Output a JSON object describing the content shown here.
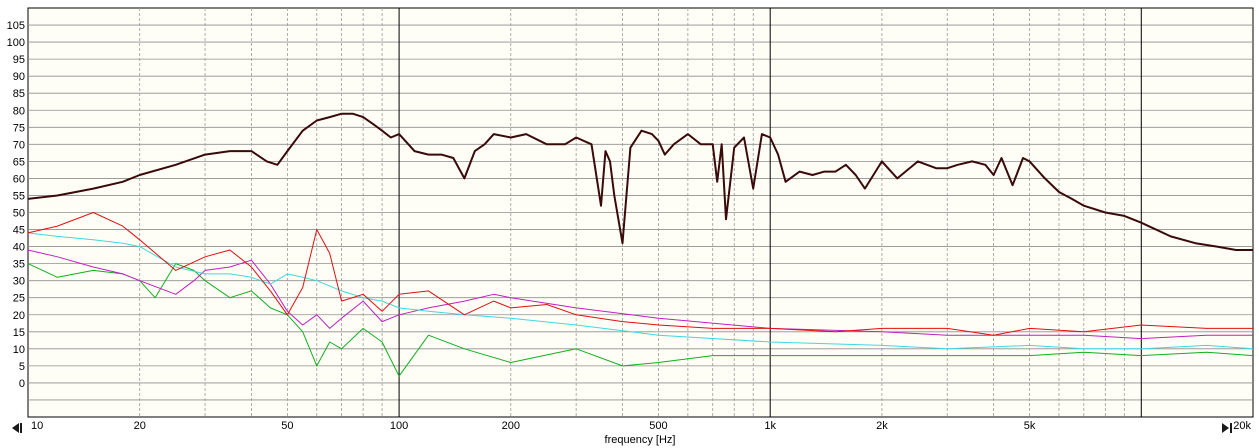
{
  "chart_data": {
    "type": "line",
    "title": "",
    "xlabel": "frequency [Hz]",
    "ylabel": "",
    "x_scale": "log",
    "xlim": [
      10,
      20000
    ],
    "ylim": [
      -10,
      110
    ],
    "y_ticks": [
      0,
      5,
      10,
      15,
      20,
      25,
      30,
      35,
      40,
      45,
      50,
      55,
      60,
      65,
      70,
      75,
      80,
      85,
      90,
      95,
      100,
      105
    ],
    "y_tick_labels": [
      "0",
      "5",
      "10",
      "15",
      "20",
      "25",
      "30",
      "35",
      "40",
      "45",
      "50",
      "55",
      "60",
      "65",
      "70",
      "75",
      "80",
      "85",
      "90",
      "95",
      "100",
      "105"
    ],
    "x_ticks": [
      10,
      20,
      50,
      100,
      200,
      500,
      1000,
      2000,
      5000,
      20000
    ],
    "x_tick_labels": [
      "10",
      "20",
      "50",
      "100",
      "200",
      "500",
      "1k",
      "2k",
      "5k",
      "20k"
    ],
    "grid": true,
    "legend": "none",
    "colors": {
      "main": "#3a0a0a",
      "red": "#e01010",
      "cyan": "#40d8e0",
      "magenta": "#c020c0",
      "green": "#10b020",
      "grid_minor": "#9a9a9a",
      "grid_major": "#000000"
    },
    "series": [
      {
        "color": "#3a0a0a",
        "x": [
          10,
          12,
          15,
          18,
          20,
          25,
          30,
          35,
          40,
          44,
          47,
          50,
          55,
          60,
          65,
          70,
          75,
          80,
          85,
          90,
          95,
          100,
          110,
          120,
          130,
          140,
          150,
          160,
          170,
          180,
          200,
          220,
          250,
          280,
          300,
          330,
          350,
          360,
          370,
          380,
          400,
          420,
          450,
          480,
          500,
          520,
          550,
          600,
          650,
          700,
          720,
          740,
          760,
          800,
          850,
          900,
          950,
          1000,
          1050,
          1100,
          1200,
          1300,
          1400,
          1500,
          1600,
          1700,
          1800,
          2000,
          2200,
          2500,
          2800,
          3000,
          3200,
          3500,
          3800,
          4000,
          4200,
          4500,
          4800,
          5000,
          5500,
          6000,
          6500,
          7000,
          8000,
          9000,
          10000,
          12000,
          14000,
          16000,
          18000,
          20000
        ],
        "y": [
          54,
          55,
          57,
          59,
          61,
          64,
          67,
          68,
          68,
          65,
          64,
          68,
          74,
          77,
          78,
          79,
          79,
          78,
          76,
          74,
          72,
          73,
          68,
          67,
          67,
          66,
          60,
          68,
          70,
          73,
          72,
          73,
          70,
          70,
          72,
          70,
          52,
          68,
          65,
          55,
          41,
          69,
          74,
          73,
          71,
          67,
          70,
          73,
          70,
          70,
          59,
          70,
          48,
          69,
          72,
          57,
          73,
          72,
          67,
          59,
          62,
          61,
          62,
          62,
          64,
          61,
          57,
          65,
          60,
          65,
          63,
          63,
          64,
          65,
          64,
          61,
          66,
          58,
          66,
          65,
          60,
          56,
          54,
          52,
          50,
          49,
          47,
          43,
          41,
          40,
          39,
          39
        ]
      },
      {
        "color": "#e01010",
        "x": [
          10,
          12,
          15,
          18,
          20,
          25,
          30,
          35,
          40,
          45,
          50,
          55,
          60,
          65,
          70,
          80,
          90,
          100,
          120,
          150,
          180,
          200,
          250,
          300,
          400,
          500,
          700,
          1000,
          1500,
          2000,
          3000,
          4000,
          5000,
          7000,
          10000,
          15000,
          20000
        ],
        "y": [
          44,
          46,
          50,
          46,
          42,
          33,
          37,
          39,
          34,
          27,
          20,
          28,
          45,
          38,
          24,
          26,
          21,
          26,
          27,
          20,
          24,
          22,
          23,
          20,
          18,
          17,
          16,
          16,
          15,
          16,
          16,
          14,
          16,
          15,
          17,
          16,
          16
        ]
      },
      {
        "color": "#40d8e0",
        "x": [
          10,
          12,
          15,
          18,
          20,
          25,
          30,
          35,
          40,
          45,
          50,
          55,
          60,
          70,
          80,
          90,
          100,
          120,
          150,
          200,
          300,
          500,
          1000,
          2000,
          3000,
          5000,
          7000,
          10000,
          15000,
          20000
        ],
        "y": [
          44,
          43,
          42,
          41,
          40,
          34,
          32,
          32,
          31,
          29,
          32,
          31,
          30,
          27,
          25,
          24,
          22,
          21,
          20,
          19,
          17,
          14,
          12,
          11,
          10,
          11,
          10,
          10,
          11,
          10
        ]
      },
      {
        "color": "#c020c0",
        "x": [
          10,
          12,
          15,
          18,
          20,
          25,
          28,
          30,
          35,
          40,
          45,
          50,
          55,
          60,
          65,
          70,
          80,
          90,
          100,
          120,
          150,
          180,
          200,
          300,
          500,
          1000,
          2000,
          3000,
          5000,
          7000,
          10000,
          15000,
          20000
        ],
        "y": [
          39,
          37,
          34,
          32,
          30,
          26,
          30,
          33,
          34,
          36,
          29,
          21,
          17,
          20,
          16,
          19,
          24,
          18,
          20,
          22,
          24,
          26,
          25,
          22,
          19,
          16,
          15,
          14,
          14,
          14,
          13,
          14,
          14
        ]
      },
      {
        "color": "#10b020",
        "x": [
          10,
          12,
          15,
          18,
          20,
          22,
          25,
          28,
          30,
          35,
          40,
          45,
          50,
          55,
          60,
          65,
          70,
          80,
          90,
          100,
          120,
          150,
          200,
          300,
          400,
          500,
          700,
          1000,
          2000,
          3000,
          5000,
          7000,
          10000,
          15000,
          20000
        ],
        "y": [
          35,
          31,
          33,
          32,
          30,
          25,
          35,
          33,
          30,
          25,
          27,
          22,
          20,
          15,
          5,
          12,
          10,
          16,
          12,
          2,
          14,
          10,
          6,
          10,
          5,
          6,
          8,
          8,
          8,
          8,
          8,
          9,
          8,
          9,
          8
        ]
      }
    ]
  }
}
